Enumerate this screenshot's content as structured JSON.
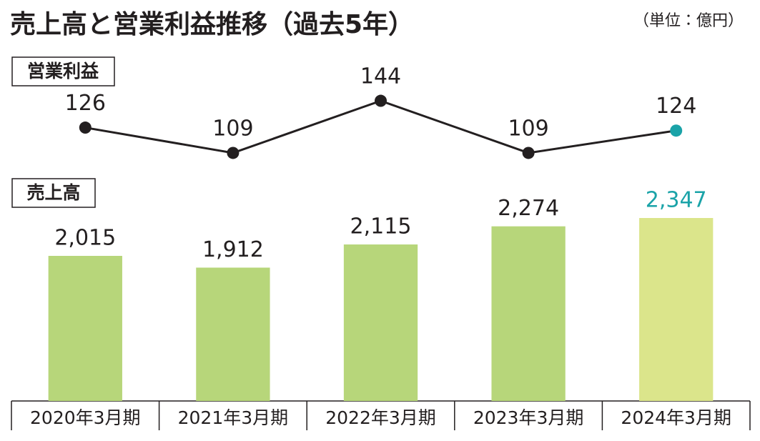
{
  "chart_data": {
    "type": "bar",
    "title": "売上高と営業利益推移（過去5年）",
    "subtitle": "（単位：億円）",
    "categories": [
      "2020年3月期",
      "2021年3月期",
      "2022年3月期",
      "2023年3月期",
      "2024年3月期"
    ],
    "ylim": [
      743,
      2441
    ],
    "y2lim": [
      101.3,
      149.3
    ],
    "series": [
      {
        "name": "営業利益",
        "type": "line",
        "axis": "y2",
        "color": "#231f20",
        "values": [
          126,
          109,
          144,
          109,
          124
        ],
        "marker_colors": [
          "#231f20",
          "#231f20",
          "#231f20",
          "#231f20",
          "#1aa3a8"
        ],
        "label_colors": [
          "#231f20",
          "#231f20",
          "#231f20",
          "#231f20",
          "#231f20"
        ]
      },
      {
        "name": "売上高",
        "type": "bar",
        "values": [
          2015,
          1912,
          2115,
          2274,
          2347
        ],
        "value_labels": [
          "2,015",
          "1,912",
          "2,115",
          "2,274",
          "2,347"
        ],
        "colors": [
          "#b7d67a",
          "#b7d67a",
          "#b7d67a",
          "#b7d67a",
          "#dbe58b"
        ],
        "label_colors": [
          "#231f20",
          "#231f20",
          "#231f20",
          "#231f20",
          "#1aa3a8"
        ]
      }
    ]
  }
}
